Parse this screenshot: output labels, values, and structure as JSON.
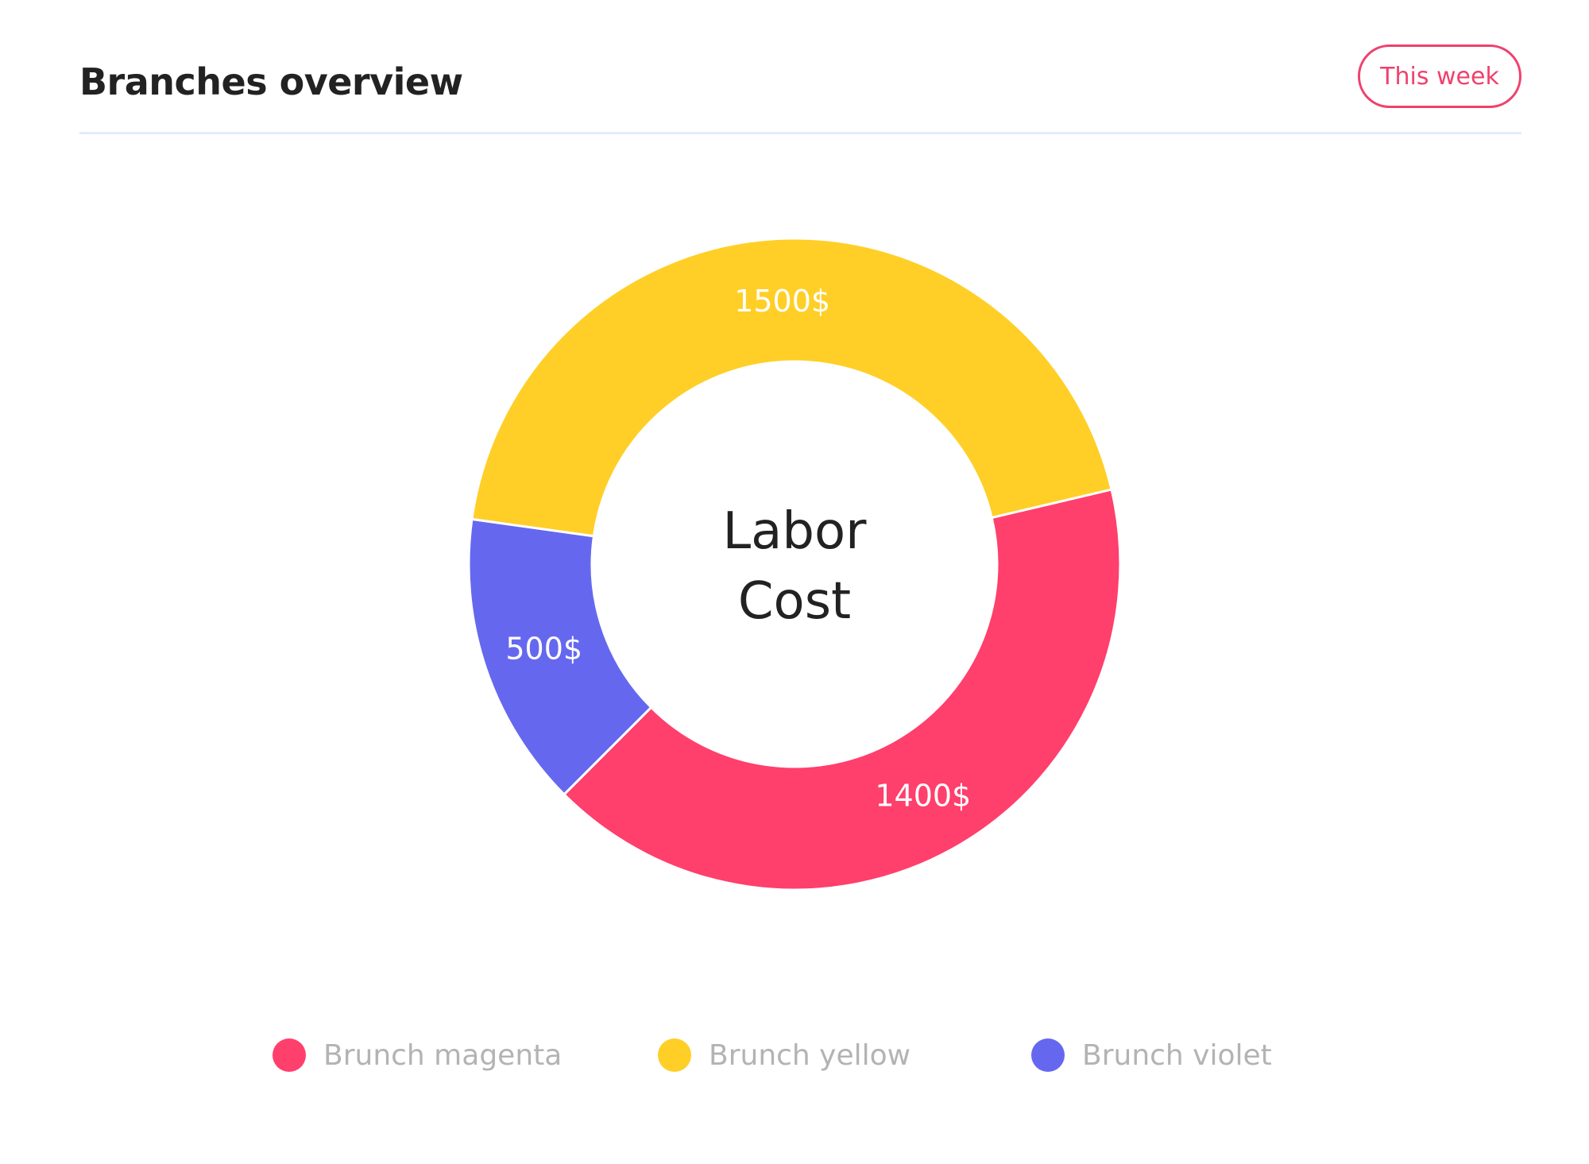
{
  "header": {
    "title": "Branches overview",
    "range_button": "This week"
  },
  "colors": {
    "accent": "#f0416c",
    "divider": "#e3ecf9",
    "magenta": "#ff3f6c",
    "yellow": "#ffcf27",
    "violet": "#6568ef",
    "legend_text": "#b3b3b3"
  },
  "chart_data": {
    "type": "pie",
    "variant": "donut",
    "center_label": [
      "Labor",
      "Cost"
    ],
    "series": [
      {
        "name": "Brunch magenta",
        "value": 1400,
        "label": "1400$",
        "color": "#ff3f6c"
      },
      {
        "name": "Brunch yellow",
        "value": 1500,
        "label": "1500$",
        "color": "#ffcf27"
      },
      {
        "name": "Brunch violet",
        "value": 500,
        "label": "500$",
        "color": "#6568ef"
      }
    ],
    "legend_position": "bottom"
  },
  "legend": {
    "items": [
      {
        "label": "Brunch magenta",
        "color": "#ff3f6c"
      },
      {
        "label": "Brunch yellow",
        "color": "#ffcf27"
      },
      {
        "label": "Brunch violet",
        "color": "#6568ef"
      }
    ]
  }
}
